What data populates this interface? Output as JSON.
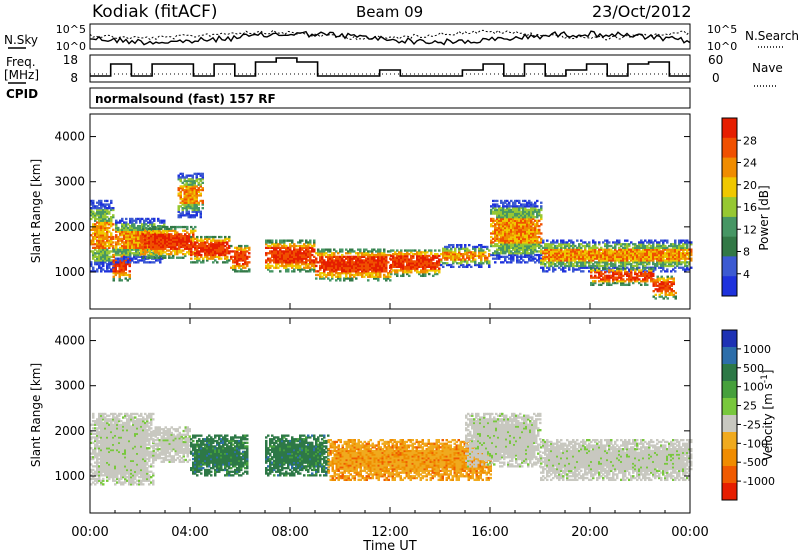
{
  "header": {
    "station": "Kodiak (fitACF)",
    "beam": "Beam 09",
    "date": "23/Oct/2012"
  },
  "left_labels": {
    "nsky": "N.Sky",
    "freq_line1": "Freq.",
    "freq_line2": "[MHz]",
    "cpid": "CPID"
  },
  "right_labels": {
    "nsearch": "N.Search",
    "nave": "Nave"
  },
  "noise_panel": {
    "left_ticks": [
      "10^5",
      "10^0"
    ],
    "right_ticks": [
      "10^5",
      "10^0"
    ]
  },
  "freq_panel": {
    "left_ticks": [
      "18",
      "8"
    ],
    "right_ticks": [
      "60",
      "0"
    ]
  },
  "cpid_text": "normalsound (fast) 157 RF",
  "x_axis": {
    "label": "Time UT",
    "ticks": [
      "00:00",
      "04:00",
      "08:00",
      "12:00",
      "16:00",
      "20:00",
      "00:00"
    ]
  },
  "colors": {
    "power": [
      "#1e32dc",
      "#3c5ad2",
      "#327846",
      "#469664",
      "#96c832",
      "#f0c800",
      "#f08c00",
      "#f05000",
      "#e61e00"
    ],
    "velocity": [
      "#1e32b4",
      "#2d6eaa",
      "#2d7846",
      "#46a03c",
      "#78c83c",
      "#c8c8c0",
      "#f0aa1e",
      "#f08c00",
      "#f05a00",
      "#e61e00"
    ]
  },
  "chart_data": [
    {
      "type": "heatmap",
      "title": "Power",
      "ylabel": "Slant Range [km]",
      "xlabel": "Time UT",
      "x_range_hours": [
        0,
        24
      ],
      "ylim": [
        180,
        4500
      ],
      "y_ticks": [
        1000,
        2000,
        3000,
        4000
      ],
      "colorbar": {
        "label": "Power [dB]",
        "ticks": [
          "4",
          "8",
          "12",
          "16",
          "20",
          "24",
          "28"
        ],
        "range": [
          0,
          30
        ]
      },
      "regions": [
        {
          "t0": 0.0,
          "t1": 0.9,
          "r0": 1000,
          "r1": 2600,
          "level": "mid"
        },
        {
          "t0": 0.9,
          "t1": 1.6,
          "r0": 800,
          "r1": 1500,
          "level": "high"
        },
        {
          "t0": 1.0,
          "t1": 3.0,
          "r0": 1200,
          "r1": 2200,
          "level": "mid"
        },
        {
          "t0": 2.0,
          "t1": 4.2,
          "r0": 1300,
          "r1": 2000,
          "level": "high"
        },
        {
          "t0": 3.5,
          "t1": 4.5,
          "r0": 2200,
          "r1": 3200,
          "level": "mid"
        },
        {
          "t0": 4.0,
          "t1": 5.6,
          "r0": 1200,
          "r1": 1800,
          "level": "high"
        },
        {
          "t0": 5.6,
          "t1": 6.4,
          "r0": 1000,
          "r1": 1600,
          "level": "high"
        },
        {
          "t0": 7.0,
          "t1": 9.0,
          "r0": 1000,
          "r1": 1700,
          "level": "high"
        },
        {
          "t0": 9.0,
          "t1": 12.0,
          "r0": 800,
          "r1": 1500,
          "level": "high"
        },
        {
          "t0": 12.0,
          "t1": 14.0,
          "r0": 900,
          "r1": 1500,
          "level": "high"
        },
        {
          "t0": 14.0,
          "t1": 16.0,
          "r0": 1100,
          "r1": 1600,
          "level": "mid"
        },
        {
          "t0": 16.0,
          "t1": 18.0,
          "r0": 1200,
          "r1": 2600,
          "level": "mid"
        },
        {
          "t0": 18.0,
          "t1": 24.0,
          "r0": 1000,
          "r1": 1700,
          "level": "mid"
        },
        {
          "t0": 20.0,
          "t1": 22.5,
          "r0": 700,
          "r1": 1100,
          "level": "high"
        },
        {
          "t0": 22.5,
          "t1": 23.4,
          "r0": 400,
          "r1": 900,
          "level": "high"
        }
      ]
    },
    {
      "type": "heatmap",
      "title": "Velocity",
      "ylabel": "Slant Range [km]",
      "xlabel": "Time UT",
      "x_range_hours": [
        0,
        24
      ],
      "ylim": [
        180,
        4500
      ],
      "y_ticks": [
        1000,
        2000,
        3000,
        4000
      ],
      "colorbar": {
        "label": "Velocity [m s^-1]",
        "ticks": [
          "1000",
          "500",
          "100",
          "25",
          "-25",
          "-100",
          "-500",
          "-1000"
        ],
        "range": [
          -1250,
          1250
        ]
      },
      "regions": [
        {
          "t0": 0.0,
          "t1": 2.5,
          "r0": 800,
          "r1": 2400,
          "level": "ground"
        },
        {
          "t0": 2.5,
          "t1": 4.0,
          "r0": 1300,
          "r1": 2100,
          "level": "ground"
        },
        {
          "t0": 4.0,
          "t1": 6.3,
          "r0": 1000,
          "r1": 1900,
          "level": "green"
        },
        {
          "t0": 7.0,
          "t1": 9.5,
          "r0": 1000,
          "r1": 1900,
          "level": "green"
        },
        {
          "t0": 9.5,
          "t1": 16.0,
          "r0": 900,
          "r1": 1800,
          "level": "orange"
        },
        {
          "t0": 15.0,
          "t1": 18.0,
          "r0": 1200,
          "r1": 2400,
          "level": "ground"
        },
        {
          "t0": 18.0,
          "t1": 24.0,
          "r0": 900,
          "r1": 1800,
          "level": "ground"
        }
      ]
    }
  ]
}
